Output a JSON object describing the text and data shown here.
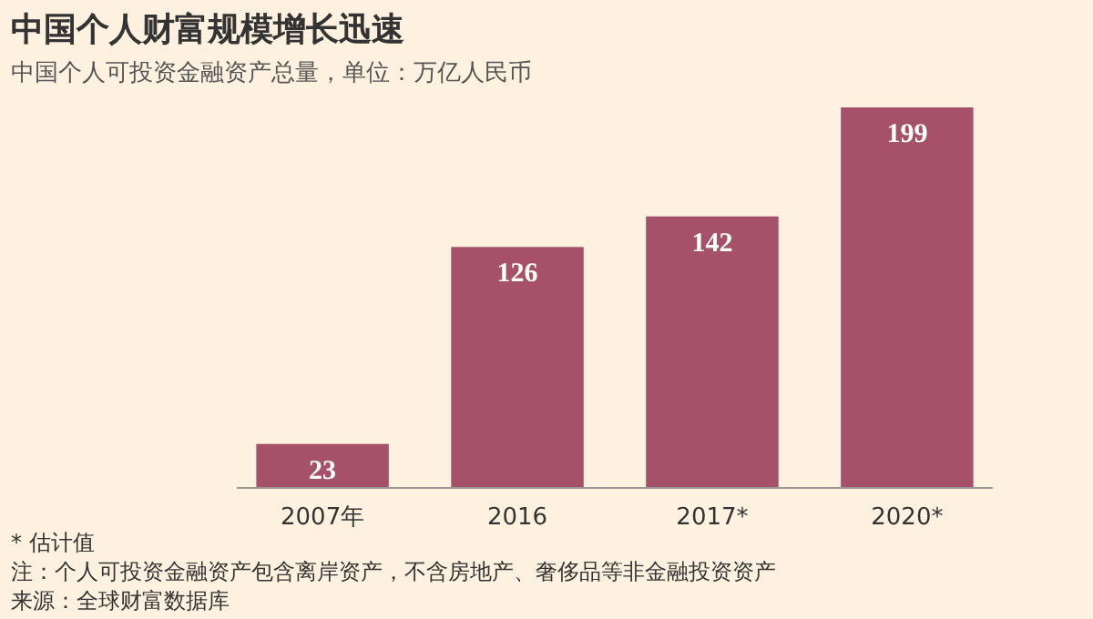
{
  "chart_data": {
    "type": "bar",
    "title": "中国个人财富规模增长迅速",
    "subtitle": "中国个人可投资金融资产总量，单位：万亿人民币",
    "categories": [
      "2007年",
      "2016",
      "2017*",
      "2020*"
    ],
    "values": [
      23,
      126,
      142,
      199
    ],
    "color": "#a5516a",
    "data_labels": true,
    "annotations": [
      "* 估计值",
      "注：个人可投资金融资产包含离岸资产，不含房地产、奢侈品等非金融投资资产",
      "来源：全球财富数据库"
    ]
  }
}
